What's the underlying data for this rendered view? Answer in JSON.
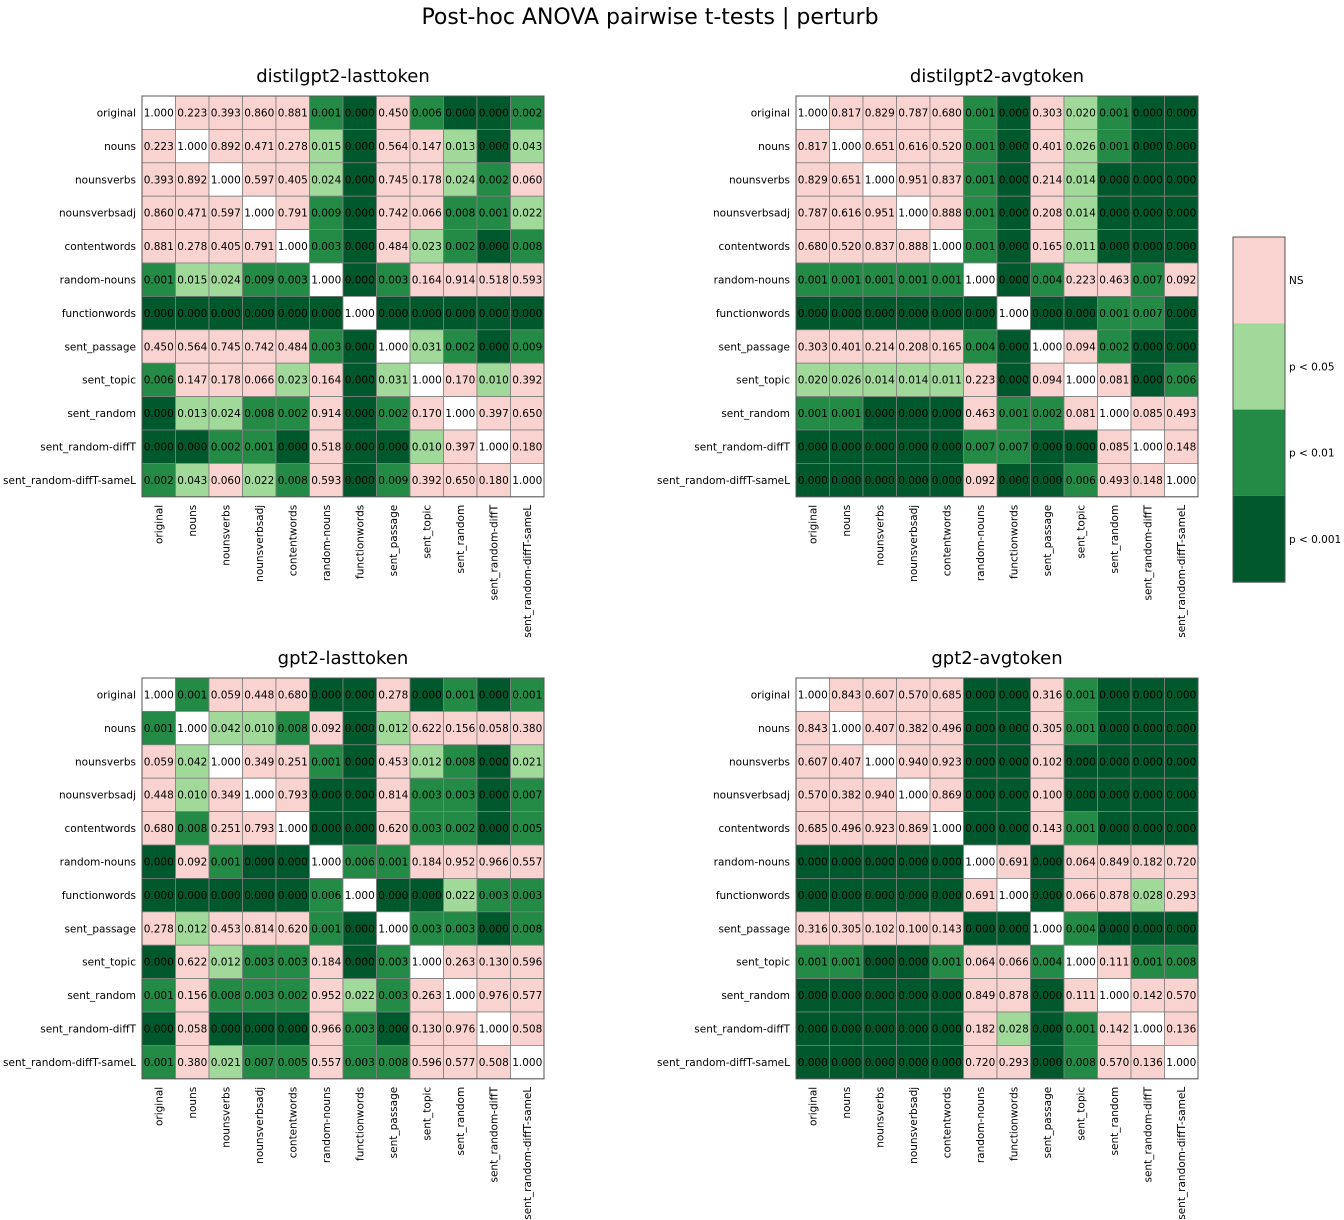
{
  "title": "Post-hoc ANOVA pairwise t-tests | perturb",
  "colors": {
    "ns": "#f9d3cf",
    "p05": "#a1d99b",
    "p01": "#238b45",
    "p001": "#00592d",
    "diag": "#ffffff",
    "grid": "#7f7f7f"
  },
  "chart_data": [
    {
      "type": "heatmap",
      "title": "distilgpt2-lasttoken",
      "conditions": [
        "original",
        "nouns",
        "nounsverbs",
        "nounsverbsadj",
        "contentwords",
        "random-nouns",
        "functionwords",
        "sent_passage",
        "sent_topic",
        "sent_random",
        "sent_random-diffT",
        "sent_random-diffT-sameL"
      ],
      "values": [
        [
          "1.000",
          "0.223",
          "0.393",
          "0.860",
          "0.881",
          "0.001",
          "0.000",
          "0.450",
          "0.006",
          "0.000",
          "0.000",
          "0.002"
        ],
        [
          "0.223",
          "1.000",
          "0.892",
          "0.471",
          "0.278",
          "0.015",
          "0.000",
          "0.564",
          "0.147",
          "0.013",
          "0.000",
          "0.043"
        ],
        [
          "0.393",
          "0.892",
          "1.000",
          "0.597",
          "0.405",
          "0.024",
          "0.000",
          "0.745",
          "0.178",
          "0.024",
          "0.002",
          "0.060"
        ],
        [
          "0.860",
          "0.471",
          "0.597",
          "1.000",
          "0.791",
          "0.009",
          "0.000",
          "0.742",
          "0.066",
          "0.008",
          "0.001",
          "0.022"
        ],
        [
          "0.881",
          "0.278",
          "0.405",
          "0.791",
          "1.000",
          "0.003",
          "0.000",
          "0.484",
          "0.023",
          "0.002",
          "0.000",
          "0.008"
        ],
        [
          "0.001",
          "0.015",
          "0.024",
          "0.009",
          "0.003",
          "1.000",
          "0.000",
          "0.003",
          "0.164",
          "0.914",
          "0.518",
          "0.593"
        ],
        [
          "0.000",
          "0.000",
          "0.000",
          "0.000",
          "0.000",
          "0.000",
          "1.000",
          "0.000",
          "0.000",
          "0.000",
          "0.000",
          "0.000"
        ],
        [
          "0.450",
          "0.564",
          "0.745",
          "0.742",
          "0.484",
          "0.003",
          "0.000",
          "1.000",
          "0.031",
          "0.002",
          "0.000",
          "0.009"
        ],
        [
          "0.006",
          "0.147",
          "0.178",
          "0.066",
          "0.023",
          "0.164",
          "0.000",
          "0.031",
          "1.000",
          "0.170",
          "0.010",
          "0.392"
        ],
        [
          "0.000",
          "0.013",
          "0.024",
          "0.008",
          "0.002",
          "0.914",
          "0.000",
          "0.002",
          "0.170",
          "1.000",
          "0.397",
          "0.650"
        ],
        [
          "0.000",
          "0.000",
          "0.002",
          "0.001",
          "0.000",
          "0.518",
          "0.000",
          "0.000",
          "0.010",
          "0.397",
          "1.000",
          "0.180"
        ],
        [
          "0.002",
          "0.043",
          "0.060",
          "0.022",
          "0.008",
          "0.593",
          "0.000",
          "0.009",
          "0.392",
          "0.650",
          "0.180",
          "1.000"
        ]
      ]
    },
    {
      "type": "heatmap",
      "title": "distilgpt2-avgtoken",
      "conditions": [
        "original",
        "nouns",
        "nounsverbs",
        "nounsverbsadj",
        "contentwords",
        "random-nouns",
        "functionwords",
        "sent_passage",
        "sent_topic",
        "sent_random",
        "sent_random-diffT",
        "sent_random-diffT-sameL"
      ],
      "values": [
        [
          "1.000",
          "0.817",
          "0.829",
          "0.787",
          "0.680",
          "0.001",
          "0.000",
          "0.303",
          "0.020",
          "0.001",
          "0.000",
          "0.000"
        ],
        [
          "0.817",
          "1.000",
          "0.651",
          "0.616",
          "0.520",
          "0.001",
          "0.000",
          "0.401",
          "0.026",
          "0.001",
          "0.000",
          "0.000"
        ],
        [
          "0.829",
          "0.651",
          "1.000",
          "0.951",
          "0.837",
          "0.001",
          "0.000",
          "0.214",
          "0.014",
          "0.000",
          "0.000",
          "0.000"
        ],
        [
          "0.787",
          "0.616",
          "0.951",
          "1.000",
          "0.888",
          "0.001",
          "0.000",
          "0.208",
          "0.014",
          "0.000",
          "0.000",
          "0.000"
        ],
        [
          "0.680",
          "0.520",
          "0.837",
          "0.888",
          "1.000",
          "0.001",
          "0.000",
          "0.165",
          "0.011",
          "0.000",
          "0.000",
          "0.000"
        ],
        [
          "0.001",
          "0.001",
          "0.001",
          "0.001",
          "0.001",
          "1.000",
          "0.000",
          "0.004",
          "0.223",
          "0.463",
          "0.007",
          "0.092"
        ],
        [
          "0.000",
          "0.000",
          "0.000",
          "0.000",
          "0.000",
          "0.000",
          "1.000",
          "0.000",
          "0.000",
          "0.001",
          "0.007",
          "0.000"
        ],
        [
          "0.303",
          "0.401",
          "0.214",
          "0.208",
          "0.165",
          "0.004",
          "0.000",
          "1.000",
          "0.094",
          "0.002",
          "0.000",
          "0.000"
        ],
        [
          "0.020",
          "0.026",
          "0.014",
          "0.014",
          "0.011",
          "0.223",
          "0.000",
          "0.094",
          "1.000",
          "0.081",
          "0.000",
          "0.006"
        ],
        [
          "0.001",
          "0.001",
          "0.000",
          "0.000",
          "0.000",
          "0.463",
          "0.001",
          "0.002",
          "0.081",
          "1.000",
          "0.085",
          "0.493"
        ],
        [
          "0.000",
          "0.000",
          "0.000",
          "0.000",
          "0.000",
          "0.007",
          "0.007",
          "0.000",
          "0.000",
          "0.085",
          "1.000",
          "0.148"
        ],
        [
          "0.000",
          "0.000",
          "0.000",
          "0.000",
          "0.000",
          "0.092",
          "0.000",
          "0.000",
          "0.006",
          "0.493",
          "0.148",
          "1.000"
        ]
      ]
    },
    {
      "type": "heatmap",
      "title": "gpt2-lasttoken",
      "conditions": [
        "original",
        "nouns",
        "nounsverbs",
        "nounsverbsadj",
        "contentwords",
        "random-nouns",
        "functionwords",
        "sent_passage",
        "sent_topic",
        "sent_random",
        "sent_random-diffT",
        "sent_random-diffT-sameL"
      ],
      "values": [
        [
          "1.000",
          "0.001",
          "0.059",
          "0.448",
          "0.680",
          "0.000",
          "0.000",
          "0.278",
          "0.000",
          "0.001",
          "0.000",
          "0.001"
        ],
        [
          "0.001",
          "1.000",
          "0.042",
          "0.010",
          "0.008",
          "0.092",
          "0.000",
          "0.012",
          "0.622",
          "0.156",
          "0.058",
          "0.380"
        ],
        [
          "0.059",
          "0.042",
          "1.000",
          "0.349",
          "0.251",
          "0.001",
          "0.000",
          "0.453",
          "0.012",
          "0.008",
          "0.000",
          "0.021"
        ],
        [
          "0.448",
          "0.010",
          "0.349",
          "1.000",
          "0.793",
          "0.000",
          "0.000",
          "0.814",
          "0.003",
          "0.003",
          "0.000",
          "0.007"
        ],
        [
          "0.680",
          "0.008",
          "0.251",
          "0.793",
          "1.000",
          "0.000",
          "0.000",
          "0.620",
          "0.003",
          "0.002",
          "0.000",
          "0.005"
        ],
        [
          "0.000",
          "0.092",
          "0.001",
          "0.000",
          "0.000",
          "1.000",
          "0.006",
          "0.001",
          "0.184",
          "0.952",
          "0.966",
          "0.557"
        ],
        [
          "0.000",
          "0.000",
          "0.000",
          "0.000",
          "0.000",
          "0.006",
          "1.000",
          "0.000",
          "0.000",
          "0.022",
          "0.003",
          "0.003"
        ],
        [
          "0.278",
          "0.012",
          "0.453",
          "0.814",
          "0.620",
          "0.001",
          "0.000",
          "1.000",
          "0.003",
          "0.003",
          "0.000",
          "0.008"
        ],
        [
          "0.000",
          "0.622",
          "0.012",
          "0.003",
          "0.003",
          "0.184",
          "0.000",
          "0.003",
          "1.000",
          "0.263",
          "0.130",
          "0.596"
        ],
        [
          "0.001",
          "0.156",
          "0.008",
          "0.003",
          "0.002",
          "0.952",
          "0.022",
          "0.003",
          "0.263",
          "1.000",
          "0.976",
          "0.577"
        ],
        [
          "0.000",
          "0.058",
          "0.000",
          "0.000",
          "0.000",
          "0.966",
          "0.003",
          "0.000",
          "0.130",
          "0.976",
          "1.000",
          "0.508"
        ],
        [
          "0.001",
          "0.380",
          "0.021",
          "0.007",
          "0.005",
          "0.557",
          "0.003",
          "0.008",
          "0.596",
          "0.577",
          "0.508",
          "1.000"
        ]
      ]
    },
    {
      "type": "heatmap",
      "title": "gpt2-avgtoken",
      "conditions": [
        "original",
        "nouns",
        "nounsverbs",
        "nounsverbsadj",
        "contentwords",
        "random-nouns",
        "functionwords",
        "sent_passage",
        "sent_topic",
        "sent_random",
        "sent_random-diffT",
        "sent_random-diffT-sameL"
      ],
      "values": [
        [
          "1.000",
          "0.843",
          "0.607",
          "0.570",
          "0.685",
          "0.000",
          "0.000",
          "0.316",
          "0.001",
          "0.000",
          "0.000",
          "0.000"
        ],
        [
          "0.843",
          "1.000",
          "0.407",
          "0.382",
          "0.496",
          "0.000",
          "0.000",
          "0.305",
          "0.001",
          "0.000",
          "0.000",
          "0.000"
        ],
        [
          "0.607",
          "0.407",
          "1.000",
          "0.940",
          "0.923",
          "0.000",
          "0.000",
          "0.102",
          "0.000",
          "0.000",
          "0.000",
          "0.000"
        ],
        [
          "0.570",
          "0.382",
          "0.940",
          "1.000",
          "0.869",
          "0.000",
          "0.000",
          "0.100",
          "0.000",
          "0.000",
          "0.000",
          "0.000"
        ],
        [
          "0.685",
          "0.496",
          "0.923",
          "0.869",
          "1.000",
          "0.000",
          "0.000",
          "0.143",
          "0.001",
          "0.000",
          "0.000",
          "0.000"
        ],
        [
          "0.000",
          "0.000",
          "0.000",
          "0.000",
          "0.000",
          "1.000",
          "0.691",
          "0.000",
          "0.064",
          "0.849",
          "0.182",
          "0.720"
        ],
        [
          "0.000",
          "0.000",
          "0.000",
          "0.000",
          "0.000",
          "0.691",
          "1.000",
          "0.000",
          "0.066",
          "0.878",
          "0.028",
          "0.293"
        ],
        [
          "0.316",
          "0.305",
          "0.102",
          "0.100",
          "0.143",
          "0.000",
          "0.000",
          "1.000",
          "0.004",
          "0.000",
          "0.000",
          "0.000"
        ],
        [
          "0.001",
          "0.001",
          "0.000",
          "0.000",
          "0.001",
          "0.064",
          "0.066",
          "0.004",
          "1.000",
          "0.111",
          "0.001",
          "0.008"
        ],
        [
          "0.000",
          "0.000",
          "0.000",
          "0.000",
          "0.000",
          "0.849",
          "0.878",
          "0.000",
          "0.111",
          "1.000",
          "0.142",
          "0.570"
        ],
        [
          "0.000",
          "0.000",
          "0.000",
          "0.000",
          "0.000",
          "0.182",
          "0.028",
          "0.000",
          "0.001",
          "0.142",
          "1.000",
          "0.136"
        ],
        [
          "0.000",
          "0.000",
          "0.000",
          "0.000",
          "0.000",
          "0.720",
          "0.293",
          "0.000",
          "0.008",
          "0.570",
          "0.136",
          "1.000"
        ]
      ]
    }
  ],
  "legend": {
    "items": [
      {
        "label": "NS",
        "color_key": "ns"
      },
      {
        "label": "p < 0.05",
        "color_key": "p05"
      },
      {
        "label": "p < 0.01",
        "color_key": "p01"
      },
      {
        "label": "p < 0.001",
        "color_key": "p001"
      }
    ]
  }
}
